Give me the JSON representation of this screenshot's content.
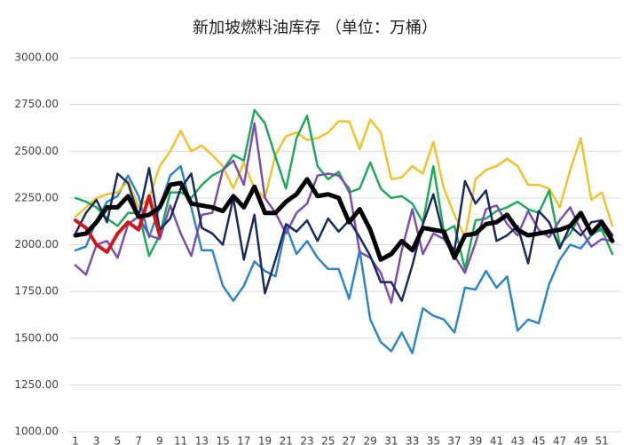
{
  "chart_data": {
    "type": "line",
    "title": "新加坡燃料油库存 （单位：万桶）",
    "categories": [
      1,
      null,
      3,
      null,
      5,
      null,
      7,
      null,
      9,
      null,
      11,
      null,
      13,
      null,
      15,
      null,
      17,
      null,
      19,
      null,
      21,
      null,
      23,
      null,
      25,
      null,
      27,
      null,
      29,
      null,
      31,
      null,
      33,
      null,
      35,
      null,
      37,
      null,
      39,
      null,
      41,
      null,
      43,
      null,
      45,
      null,
      47,
      null,
      49,
      null,
      51,
      null
    ],
    "ylim": [
      1000,
      3000
    ],
    "yticks": [
      {
        "value": 1000,
        "label": "1000.00"
      },
      {
        "value": 1250,
        "label": "1250.00"
      },
      {
        "value": 1500,
        "label": "1500.00"
      },
      {
        "value": 1750,
        "label": "1750.00"
      },
      {
        "value": 2000,
        "label": "2000.00"
      },
      {
        "value": 2250,
        "label": "2250.00"
      },
      {
        "value": 2500,
        "label": "2500.00"
      },
      {
        "value": 2750,
        "label": "2750.00"
      },
      {
        "value": 3000,
        "label": "3000.00"
      }
    ],
    "grid": true,
    "series": [
      {
        "color": "#2e86c8",
        "values": [
          1970,
          1990,
          2130,
          2230,
          2260,
          2370,
          2260,
          2040,
          2200,
          2370,
          2420,
          2200,
          1970,
          1970,
          1780,
          1700,
          1780,
          1910,
          1860,
          1830,
          2100,
          1950,
          2020,
          1930,
          1870,
          1870,
          1710,
          1970,
          1600,
          1480,
          1430,
          1530,
          1420,
          1660,
          1620,
          1600,
          1530,
          1770,
          1760,
          1860,
          1770,
          1830,
          1540,
          1600,
          1580,
          1790,
          1920,
          2000,
          1980,
          2050,
          2090,
          2020
        ]
      },
      {
        "color": "#f2c12e",
        "values": [
          2150,
          2200,
          2250,
          2270,
          2280,
          2340,
          2200,
          2250,
          2420,
          2500,
          2610,
          2500,
          2530,
          2480,
          2420,
          2300,
          2440,
          2300,
          2250,
          2480,
          2580,
          2600,
          2560,
          2570,
          2600,
          2660,
          2660,
          2510,
          2670,
          2600,
          2350,
          2360,
          2420,
          2380,
          2550,
          2300,
          2160,
          2040,
          2350,
          2400,
          2420,
          2460,
          2420,
          2320,
          2320,
          2300,
          2200,
          2400,
          2570,
          2240,
          2280,
          2100
        ]
      },
      {
        "color": "#1faa59",
        "values": [
          2250,
          2230,
          2200,
          2140,
          2100,
          2170,
          2170,
          1940,
          2050,
          2280,
          2280,
          2250,
          2320,
          2370,
          2400,
          2480,
          2450,
          2720,
          2650,
          2470,
          2300,
          2570,
          2690,
          2420,
          2350,
          2390,
          2280,
          2300,
          2440,
          2300,
          2250,
          2260,
          2220,
          2120,
          2420,
          2070,
          2100,
          1870,
          2130,
          2140,
          2180,
          2200,
          2230,
          2190,
          2170,
          2290,
          2000,
          2060,
          2160,
          2060,
          2080,
          1950
        ]
      },
      {
        "color": "#7a4fb0",
        "values": [
          1890,
          1840,
          2000,
          2020,
          1930,
          2110,
          2150,
          2050,
          2030,
          2210,
          2060,
          1940,
          2160,
          2170,
          2400,
          2450,
          2320,
          2650,
          2250,
          2170,
          2060,
          2170,
          2220,
          2370,
          2380,
          2370,
          2300,
          1960,
          1930,
          1850,
          1690,
          1970,
          2190,
          1950,
          2060,
          2030,
          1940,
          1850,
          2010,
          2190,
          2210,
          2110,
          2050,
          2180,
          2080,
          2040,
          2130,
          2200,
          2080,
          1990,
          2030,
          2020
        ]
      },
      {
        "color": "#1b2a5e",
        "values": [
          2060,
          2170,
          2240,
          2120,
          2380,
          2330,
          2150,
          2410,
          2080,
          2140,
          2300,
          2380,
          2090,
          2060,
          2000,
          2250,
          1920,
          2160,
          1740,
          1920,
          2110,
          2070,
          2130,
          2020,
          2140,
          2070,
          2130,
          2040,
          1940,
          1800,
          1800,
          1700,
          1890,
          2110,
          2270,
          2040,
          1970,
          2340,
          2220,
          2290,
          2020,
          2050,
          2100,
          1900,
          2180,
          2120,
          1980,
          2100,
          2050,
          2120,
          2130,
          2050
        ]
      },
      {
        "color": "#d0161b",
        "width": 4,
        "values": [
          2130,
          2090,
          2000,
          1960,
          2060,
          2120,
          2080,
          2260,
          2050,
          null,
          null,
          null,
          null,
          null,
          null,
          null,
          null,
          null,
          null,
          null,
          null,
          null,
          null,
          null,
          null,
          null,
          null,
          null,
          null,
          null,
          null,
          null,
          null,
          null,
          null,
          null,
          null,
          null,
          null,
          null,
          null,
          null,
          null,
          null,
          null,
          null,
          null,
          null,
          null,
          null,
          null,
          null
        ]
      },
      {
        "color": "#000000",
        "width": 5,
        "values": [
          2050,
          2060,
          2120,
          2200,
          2200,
          2260,
          2150,
          2160,
          2200,
          2320,
          2330,
          2220,
          2210,
          2200,
          2180,
          2260,
          2200,
          2310,
          2170,
          2170,
          2230,
          2270,
          2350,
          2260,
          2270,
          2250,
          2120,
          2190,
          2080,
          1920,
          1950,
          2020,
          1970,
          2090,
          2080,
          2070,
          1930,
          2050,
          2060,
          2110,
          2120,
          2160,
          2080,
          2050,
          2060,
          2070,
          2080,
          2100,
          2170,
          2060,
          2120,
          2020
        ]
      }
    ]
  }
}
